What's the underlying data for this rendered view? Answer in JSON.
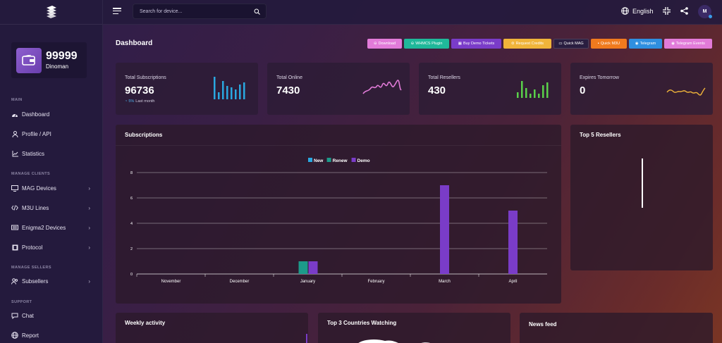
{
  "sidebar": {
    "balance": {
      "amount": "99999",
      "name": "Dinoman"
    },
    "sections": {
      "main": "MAIN",
      "manage_clients": "MANAGE CLIENTS",
      "manage_sellers": "MANAGE SELLERS",
      "support": "SUPPORT"
    },
    "items": [
      {
        "label": "Dashboard",
        "icon": "dashboard-icon"
      },
      {
        "label": "Profile / API",
        "icon": "user-icon"
      },
      {
        "label": "Statistics",
        "icon": "line-chart-icon"
      },
      {
        "label": "MAG Devices",
        "icon": "monitor-icon"
      },
      {
        "label": "M3U Lines",
        "icon": "code-icon"
      },
      {
        "label": "Enigma2 Devices",
        "icon": "receiver-icon"
      },
      {
        "label": "Protocol",
        "icon": "film-icon"
      },
      {
        "label": "Subsellers",
        "icon": "users-icon"
      },
      {
        "label": "Chat",
        "icon": "chat-icon"
      },
      {
        "label": "Report",
        "icon": "globe-icon"
      }
    ]
  },
  "topbar": {
    "search_placeholder": "Search for device...",
    "language": "English",
    "avatar_initial": "M"
  },
  "page": {
    "title": "Dashboard"
  },
  "quick_buttons": [
    {
      "label": "Download",
      "color": "#e27bd9"
    },
    {
      "label": "WHMCS Plugin",
      "color": "#1fb89a"
    },
    {
      "label": "Buy Demo Tickets",
      "color": "#7a3cc8"
    },
    {
      "label": "Request Credits",
      "color": "#f0b43a"
    },
    {
      "label": "Quick MAG",
      "color": "#2a1e40"
    },
    {
      "label": "Quick M3U",
      "color": "#f07a1e"
    },
    {
      "label": "Telegram",
      "color": "#2f8fe0"
    },
    {
      "label": "Telegram Events",
      "color": "#e27bd9"
    }
  ],
  "stats": [
    {
      "label": "Total Subscriptions",
      "value": "96736",
      "sub_pct": "5%",
      "sub_text": "Last month"
    },
    {
      "label": "Total Online",
      "value": "7430"
    },
    {
      "label": "Total Resellers",
      "value": "430"
    },
    {
      "label": "Expires Tomorrow",
      "value": "0"
    }
  ],
  "cards": {
    "subscriptions": "Subscriptions",
    "top_resellers": "Top 5 Resellers",
    "weekly": "Weekly activity",
    "countries": "Top 3 Countries Watching",
    "news": "News feed"
  },
  "chart_data": {
    "type": "bar",
    "title": "",
    "categories": [
      "November",
      "December",
      "January",
      "February",
      "March",
      "April"
    ],
    "series": [
      {
        "name": "New",
        "color": "#2aa8e0",
        "values": [
          0,
          0,
          0,
          0,
          0,
          0
        ]
      },
      {
        "name": "Renew",
        "color": "#1c9a8a",
        "values": [
          0,
          0,
          1,
          0,
          0,
          0
        ]
      },
      {
        "name": "Demo",
        "color": "#7a3cc8",
        "values": [
          0,
          0,
          1,
          0,
          7,
          5
        ]
      }
    ],
    "ylim": [
      0,
      8
    ],
    "yticks": [
      0,
      2,
      4,
      6,
      8
    ],
    "grid": true,
    "legend": "top-center"
  }
}
